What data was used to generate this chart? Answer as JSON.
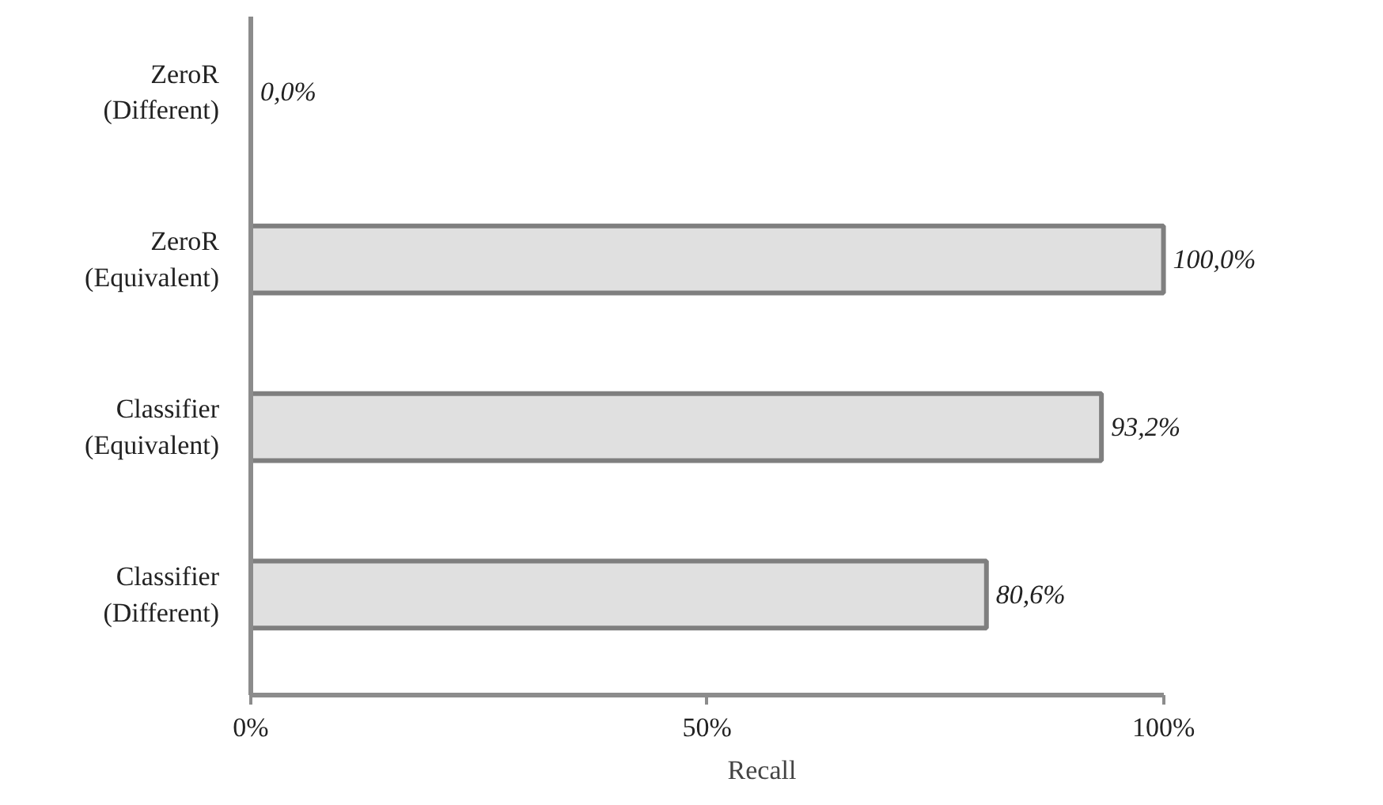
{
  "chart_data": {
    "type": "bar",
    "orientation": "horizontal",
    "xlabel": "Recall",
    "categories": [
      "ZeroR\n(Different)",
      "ZeroR\n(Equivalent)",
      "Classifier\n(Equivalent)",
      "Classifier\n(Different)"
    ],
    "values": [
      0.0,
      100.0,
      93.2,
      80.6
    ],
    "value_labels": [
      "0,0%",
      "100,0%",
      "93,2%",
      "80,6%"
    ],
    "color": "#e0e0e0",
    "xlim": [
      0,
      100
    ],
    "xticks": [
      {
        "value": 0,
        "label": "0%"
      },
      {
        "value": 50,
        "label": "50%"
      },
      {
        "value": 100,
        "label": "100%"
      }
    ],
    "grid": false
  }
}
